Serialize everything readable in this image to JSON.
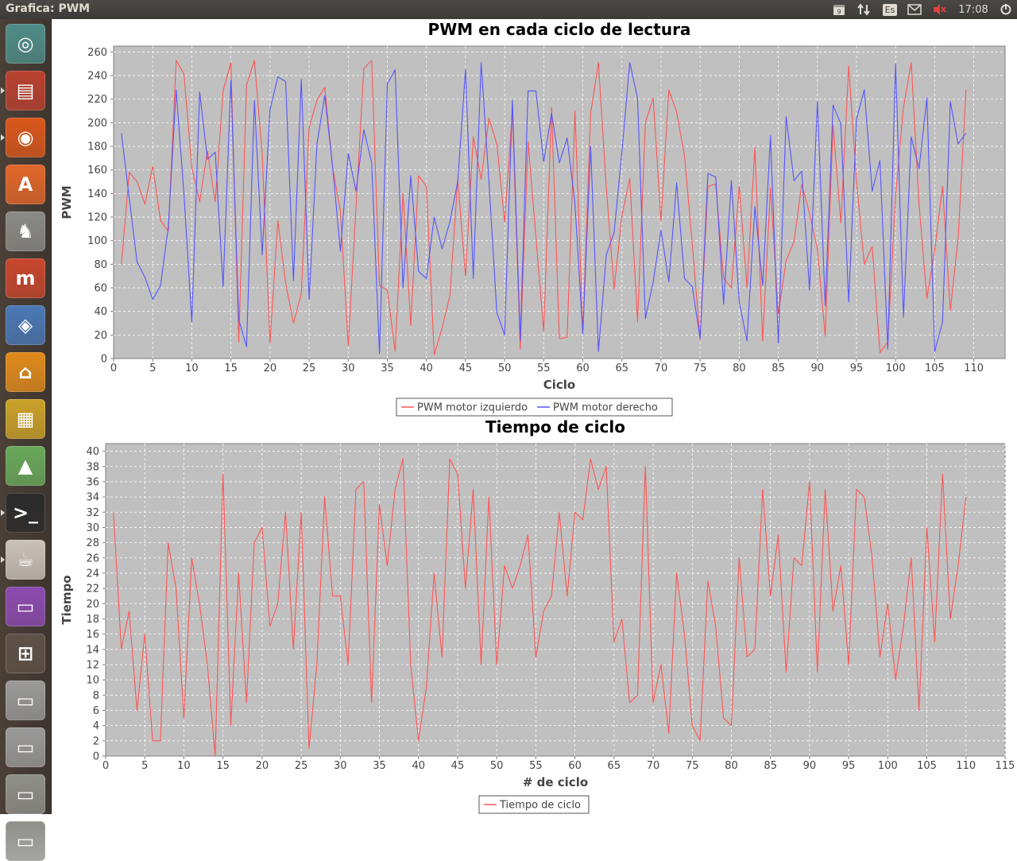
{
  "window": {
    "title": "Grafica: PWM"
  },
  "topbar": {
    "keyboard": "Es",
    "clock": "17:08",
    "calendar_day": "9"
  },
  "launcher": [
    {
      "name": "ubuntu-dash-icon",
      "bg": "#4f8c87"
    },
    {
      "name": "files-icon",
      "bg": "#b9412f"
    },
    {
      "name": "firefox-icon",
      "bg": "#d9571b"
    },
    {
      "name": "software-center-icon",
      "bg": "#e0662a"
    },
    {
      "name": "chess-icon",
      "bg": "#8a8a86"
    },
    {
      "name": "mendeley-icon",
      "bg": "#c7462c"
    },
    {
      "name": "virtualbox-icon",
      "bg": "#4a78b5"
    },
    {
      "name": "sweethome-icon",
      "bg": "#e08a1c"
    },
    {
      "name": "puzzle-icon",
      "bg": "#caa12a"
    },
    {
      "name": "android-studio-icon",
      "bg": "#69a85a"
    },
    {
      "name": "terminal-icon",
      "bg": "#2b2b2b"
    },
    {
      "name": "java-icon",
      "bg": "#c9c2b8"
    },
    {
      "name": "app-icon",
      "bg": "#8c4bb0"
    },
    {
      "name": "workspace-switcher-icon",
      "bg": "#5e5248"
    },
    {
      "name": "drive-icon",
      "bg": "#9a9a98"
    },
    {
      "name": "drive-icon",
      "bg": "#9a9a98"
    },
    {
      "name": "removable-drive-icon",
      "bg": "#8f8f8a"
    },
    {
      "name": "trash-icon",
      "bg": "#8f8f8a"
    }
  ],
  "colors": {
    "red": "#ff5555",
    "blue": "#5555ff",
    "plot_bg": "#c0c0c0"
  },
  "chart_data": [
    {
      "type": "line",
      "title": "PWM en cada ciclo de lectura",
      "xlabel": "Ciclo",
      "ylabel": "PWM",
      "xlim": [
        0,
        114
      ],
      "ylim": [
        0,
        265
      ],
      "xticks": [
        0,
        5,
        10,
        15,
        20,
        25,
        30,
        35,
        40,
        45,
        50,
        55,
        60,
        65,
        70,
        75,
        80,
        85,
        90,
        95,
        100,
        105,
        110
      ],
      "yticks": [
        0,
        20,
        40,
        60,
        80,
        100,
        120,
        140,
        160,
        180,
        200,
        220,
        240,
        260
      ],
      "grid": true,
      "legend": "bottom",
      "x": [
        1,
        2,
        3,
        4,
        5,
        6,
        7,
        8,
        9,
        10,
        11,
        12,
        13,
        14,
        15,
        16,
        17,
        18,
        19,
        20,
        21,
        22,
        23,
        24,
        25,
        26,
        27,
        28,
        29,
        30,
        31,
        32,
        33,
        34,
        35,
        36,
        37,
        38,
        39,
        40,
        41,
        42,
        43,
        44,
        45,
        46,
        47,
        48,
        49,
        50,
        51,
        52,
        53,
        54,
        55,
        56,
        57,
        58,
        59,
        60,
        61,
        62,
        63,
        64,
        65,
        66,
        67,
        68,
        69,
        70,
        71,
        72,
        73,
        74,
        75,
        76,
        77,
        78,
        79,
        80,
        81,
        82,
        83,
        84,
        85,
        86,
        87,
        88,
        89,
        90,
        91,
        92,
        93,
        94,
        95,
        96,
        97,
        98,
        99,
        100,
        101,
        102,
        103,
        104,
        105,
        106,
        107,
        108,
        109
      ],
      "series": [
        {
          "name": "PWM motor izquierdo",
          "color": "#ff5555",
          "values": [
            80,
            158,
            150,
            131,
            163,
            117,
            108,
            253,
            241,
            162,
            133,
            176,
            133,
            227,
            251,
            14,
            232,
            253,
            174,
            13,
            117,
            64,
            30,
            55,
            196,
            219,
            230,
            162,
            125,
            11,
            129,
            246,
            253,
            62,
            58,
            6,
            140,
            28,
            155,
            146,
            3,
            26,
            53,
            152,
            70,
            188,
            152,
            204,
            182,
            116,
            210,
            8,
            184,
            103,
            23,
            213,
            17,
            18,
            210,
            22,
            208,
            251,
            145,
            59,
            121,
            153,
            31,
            200,
            221,
            117,
            228,
            209,
            172,
            97,
            16,
            146,
            148,
            68,
            60,
            146,
            60,
            179,
            15,
            145,
            38,
            83,
            99,
            148,
            123,
            93,
            19,
            198,
            115,
            248,
            150,
            80,
            95,
            5,
            14,
            138,
            213,
            251,
            131,
            51,
            92,
            146,
            41,
            102,
            228
          ]
        },
        {
          "name": "PWM motor derecho",
          "color": "#5555ff",
          "values": [
            191,
            136,
            82,
            69,
            50,
            62,
            112,
            228,
            139,
            31,
            226,
            169,
            175,
            61,
            236,
            33,
            10,
            219,
            88,
            211,
            239,
            235,
            66,
            237,
            50,
            182,
            223,
            163,
            91,
            174,
            142,
            194,
            166,
            4,
            233,
            245,
            60,
            155,
            74,
            68,
            120,
            93,
            116,
            150,
            245,
            68,
            251,
            150,
            39,
            20,
            219,
            15,
            227,
            227,
            167,
            208,
            166,
            187,
            131,
            21,
            180,
            6,
            88,
            107,
            175,
            251,
            221,
            34,
            65,
            109,
            65,
            149,
            68,
            61,
            17,
            157,
            154,
            46,
            151,
            48,
            15,
            129,
            62,
            189,
            13,
            205,
            151,
            159,
            58,
            218,
            45,
            215,
            199,
            48,
            203,
            228,
            142,
            168,
            8,
            250,
            35,
            188,
            161,
            221,
            6,
            31,
            218,
            182,
            191
          ]
        }
      ]
    },
    {
      "type": "line",
      "title": "Tiempo de ciclo",
      "xlabel": "# de ciclo",
      "ylabel": "Tiempo",
      "xlim": [
        0,
        115
      ],
      "ylim": [
        0,
        41
      ],
      "xticks": [
        0,
        5,
        10,
        15,
        20,
        25,
        30,
        35,
        40,
        45,
        50,
        55,
        60,
        65,
        70,
        75,
        80,
        85,
        90,
        95,
        100,
        105,
        110,
        115
      ],
      "yticks": [
        0,
        2,
        4,
        6,
        8,
        10,
        12,
        14,
        16,
        18,
        20,
        22,
        24,
        26,
        28,
        30,
        32,
        34,
        36,
        38,
        40
      ],
      "grid": true,
      "legend": "bottom",
      "x": [
        1,
        2,
        3,
        4,
        5,
        6,
        7,
        8,
        9,
        10,
        11,
        12,
        13,
        14,
        15,
        16,
        17,
        18,
        19,
        20,
        21,
        22,
        23,
        24,
        25,
        26,
        27,
        28,
        29,
        30,
        31,
        32,
        33,
        34,
        35,
        36,
        37,
        38,
        39,
        40,
        41,
        42,
        43,
        44,
        45,
        46,
        47,
        48,
        49,
        50,
        51,
        52,
        53,
        54,
        55,
        56,
        57,
        58,
        59,
        60,
        61,
        62,
        63,
        64,
        65,
        66,
        67,
        68,
        69,
        70,
        71,
        72,
        73,
        74,
        75,
        76,
        77,
        78,
        79,
        80,
        81,
        82,
        83,
        84,
        85,
        86,
        87,
        88,
        89,
        90,
        91,
        92,
        93,
        94,
        95,
        96,
        97,
        98,
        99,
        100,
        101,
        102,
        103,
        104,
        105,
        106,
        107,
        108,
        109,
        110
      ],
      "series": [
        {
          "name": "Tiempo de ciclo",
          "color": "#ff5555",
          "values": [
            32,
            14,
            19,
            6,
            16,
            2,
            2,
            28,
            22,
            5,
            26,
            20,
            12,
            0,
            37,
            4,
            24,
            7,
            28,
            30,
            17,
            20,
            32,
            14,
            32,
            1,
            12,
            34,
            21,
            21,
            12,
            35,
            36,
            7,
            33,
            25,
            35,
            39,
            12,
            2,
            9,
            24,
            13,
            39,
            37,
            22,
            35,
            12,
            34,
            12,
            25,
            22,
            25,
            29,
            13,
            19,
            21,
            32,
            21,
            32,
            31,
            39,
            35,
            38,
            15,
            18,
            7,
            8,
            38,
            7,
            12,
            3,
            24,
            16,
            4,
            2,
            23,
            17,
            5,
            4,
            26,
            13,
            14,
            35,
            21,
            29,
            11,
            26,
            25,
            36,
            11,
            35,
            19,
            25,
            12,
            35,
            34,
            26,
            13,
            20,
            10,
            17,
            26,
            6,
            30,
            15,
            37,
            18,
            25,
            34
          ]
        }
      ]
    }
  ]
}
